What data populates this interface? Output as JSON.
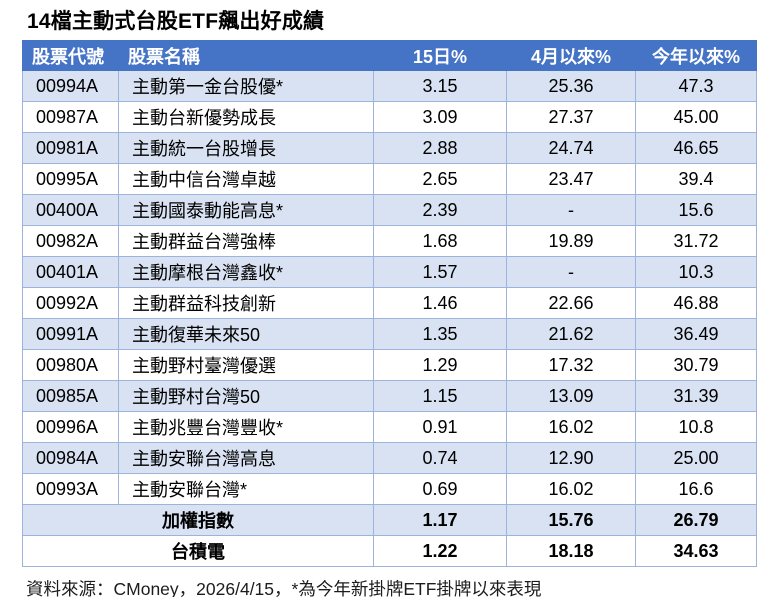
{
  "page_title": "14檔主動式台股ETF飆出好成績",
  "source_note": "資料來源：CMoney，2026/4/15，*為今年新掛牌ETF掛牌以來表現",
  "colors": {
    "header_bg": "#4573c6",
    "header_text": "#ffffff",
    "band_row_bg": "#d9e2f2",
    "plain_row_bg": "#ffffff",
    "border": "#9db3db",
    "text": "#000000"
  },
  "chart_data": {
    "type": "table",
    "title": "14檔主動式台股ETF飆出好成績",
    "columns": [
      "股票代號",
      "股票名稱",
      "15日%",
      "4月以來%",
      "今年以來%"
    ],
    "rows": [
      {
        "code": "00994A",
        "name": "主動第一金台股優*",
        "pct_15d": "3.15",
        "pct_since_april": "25.36",
        "pct_ytd": "47.3"
      },
      {
        "code": "00987A",
        "name": "主動台新優勢成長",
        "pct_15d": "3.09",
        "pct_since_april": "27.37",
        "pct_ytd": "45.00"
      },
      {
        "code": "00981A",
        "name": "主動統一台股增長",
        "pct_15d": "2.88",
        "pct_since_april": "24.74",
        "pct_ytd": "46.65"
      },
      {
        "code": "00995A",
        "name": "主動中信台灣卓越",
        "pct_15d": "2.65",
        "pct_since_april": "23.47",
        "pct_ytd": "39.4"
      },
      {
        "code": "00400A",
        "name": "主動國泰動能高息*",
        "pct_15d": "2.39",
        "pct_since_april": "-",
        "pct_ytd": "15.6"
      },
      {
        "code": "00982A",
        "name": "主動群益台灣強棒",
        "pct_15d": "1.68",
        "pct_since_april": "19.89",
        "pct_ytd": "31.72"
      },
      {
        "code": "00401A",
        "name": "主動摩根台灣鑫收*",
        "pct_15d": "1.57",
        "pct_since_april": "-",
        "pct_ytd": "10.3"
      },
      {
        "code": "00992A",
        "name": "主動群益科技創新",
        "pct_15d": "1.46",
        "pct_since_april": "22.66",
        "pct_ytd": "46.88"
      },
      {
        "code": "00991A",
        "name": "主動復華未來50",
        "pct_15d": "1.35",
        "pct_since_april": "21.62",
        "pct_ytd": "36.49"
      },
      {
        "code": "00980A",
        "name": "主動野村臺灣優選",
        "pct_15d": "1.29",
        "pct_since_april": "17.32",
        "pct_ytd": "30.79"
      },
      {
        "code": "00985A",
        "name": "主動野村台灣50",
        "pct_15d": "1.15",
        "pct_since_april": "13.09",
        "pct_ytd": "31.39"
      },
      {
        "code": "00996A",
        "name": "主動兆豐台灣豐收*",
        "pct_15d": "0.91",
        "pct_since_april": "16.02",
        "pct_ytd": "10.8"
      },
      {
        "code": "00984A",
        "name": "主動安聯台灣高息",
        "pct_15d": "0.74",
        "pct_since_april": "12.90",
        "pct_ytd": "25.00"
      },
      {
        "code": "00993A",
        "name": "主動安聯台灣*",
        "pct_15d": "0.69",
        "pct_since_april": "16.02",
        "pct_ytd": "16.6"
      }
    ],
    "summary_rows": [
      {
        "label": "加權指數",
        "pct_15d": "1.17",
        "pct_since_april": "15.76",
        "pct_ytd": "26.79"
      },
      {
        "label": "台積電",
        "pct_15d": "1.22",
        "pct_since_april": "18.18",
        "pct_ytd": "34.63"
      }
    ],
    "note": "資料來源：CMoney，2026/4/15，*為今年新掛牌ETF掛牌以來表現"
  }
}
